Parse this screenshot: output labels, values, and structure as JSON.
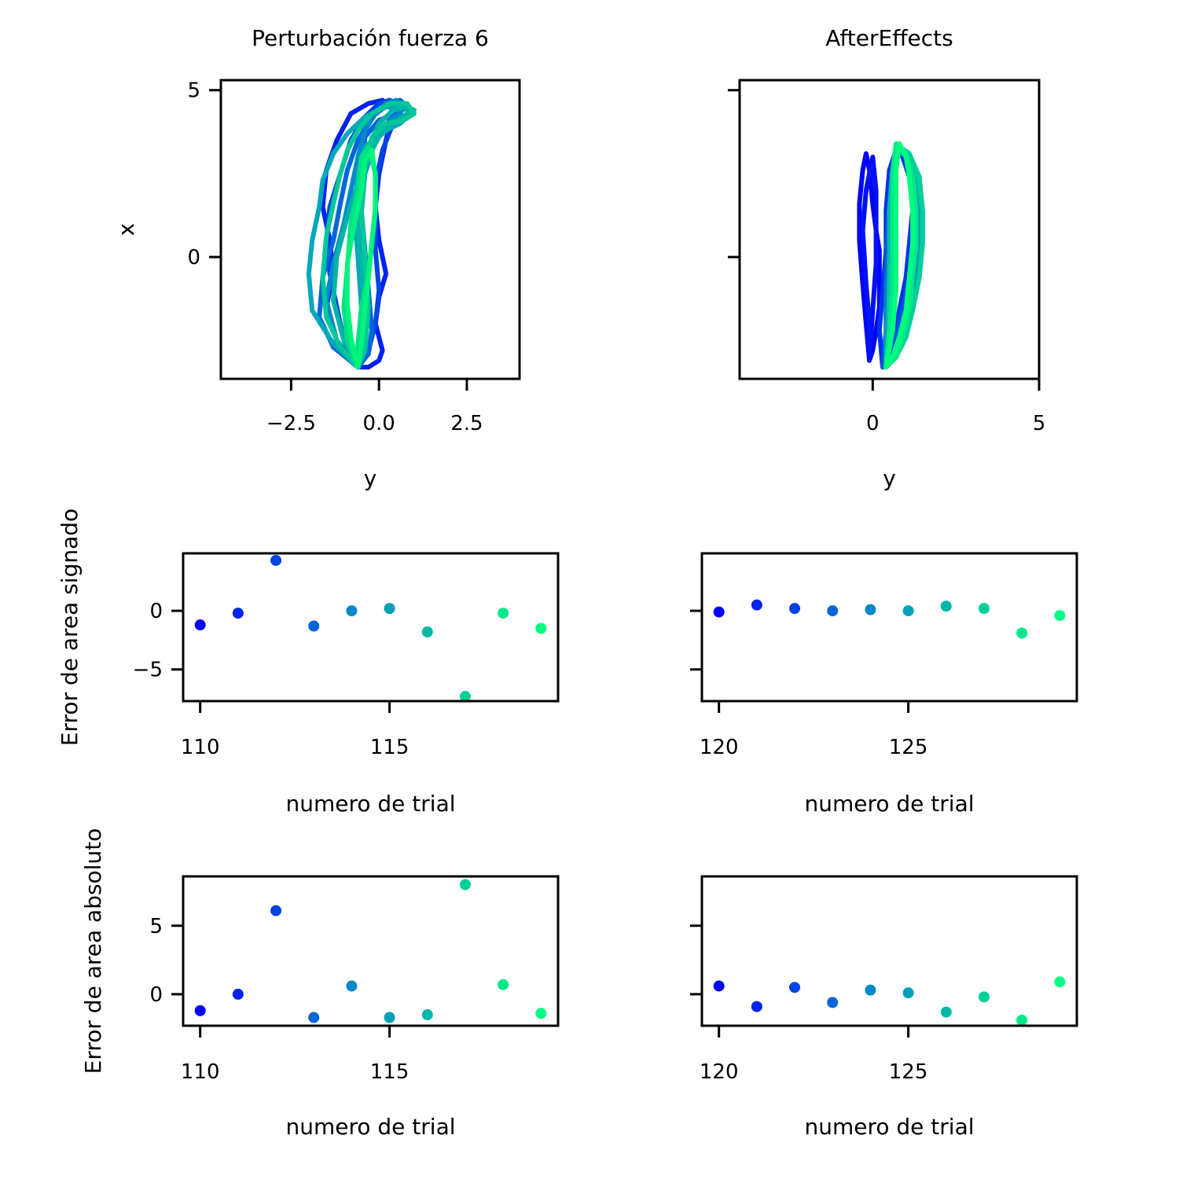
{
  "chart_data": [
    {
      "id": "traj_pert",
      "type": "line",
      "title": "Perturbación fuerza 6",
      "xlabel": "y",
      "ylabel": "x",
      "xlim": [
        -4.5,
        4.0
      ],
      "ylim": [
        -3.65,
        5.3
      ],
      "xticks": [
        -2.5,
        0.0,
        2.5
      ],
      "xticklabels": [
        "−2.5",
        "0.0",
        "2.5"
      ],
      "yticks": [
        0,
        5
      ],
      "yticklabels": [
        "0",
        "5"
      ],
      "series": [
        {
          "color": "#0022ee",
          "x": [
            -0.6,
            -1.2,
            -1.5,
            -1.3,
            -1.4,
            -1.6,
            -1.5,
            -1.2,
            -0.8,
            -0.3,
            0.1,
            0.4,
            0.2,
            0.0,
            -0.1,
            0.0,
            0.2,
            0.0,
            -0.1,
            0.1,
            0.0,
            -0.3,
            -0.6
          ],
          "y": [
            -3.3,
            -2.5,
            -1.5,
            -0.5,
            0.5,
            1.5,
            2.6,
            3.5,
            4.3,
            4.6,
            4.7,
            4.4,
            3.5,
            2.5,
            1.5,
            0.5,
            -0.5,
            -1.2,
            -2.0,
            -2.8,
            -3.1,
            -3.3,
            -3.3
          ]
        },
        {
          "color": "#0044e6",
          "x": [
            -0.6,
            -1.0,
            -1.2,
            -1.4,
            -1.5,
            -1.4,
            -1.1,
            -0.8,
            -0.4,
            0.0,
            0.3,
            0.5,
            0.6,
            0.4,
            0.1,
            -0.1,
            -0.1,
            -0.1,
            0.0,
            -0.1,
            -0.3,
            -0.6
          ],
          "y": [
            -3.3,
            -2.5,
            -1.5,
            -0.5,
            0.5,
            1.5,
            2.5,
            3.5,
            4.2,
            4.6,
            4.7,
            4.6,
            4.3,
            4.0,
            3.2,
            2.2,
            1.2,
            0.2,
            -1.0,
            -2.0,
            -2.8,
            -3.3
          ]
        },
        {
          "color": "#0066da",
          "x": [
            -0.6,
            -1.3,
            -1.7,
            -1.6,
            -1.3,
            -1.1,
            -0.9,
            -0.6,
            -0.2,
            0.3,
            0.6,
            0.8,
            0.5,
            0.0,
            -0.4,
            -0.5,
            -0.5,
            -0.4,
            -0.3,
            -0.2,
            -0.3,
            -0.6
          ],
          "y": [
            -3.3,
            -2.7,
            -1.8,
            -0.6,
            0.5,
            1.6,
            2.6,
            3.5,
            4.2,
            4.6,
            4.7,
            4.5,
            4.3,
            4.1,
            3.6,
            2.6,
            1.4,
            0.2,
            -1.0,
            -2.2,
            -2.9,
            -3.3
          ]
        },
        {
          "color": "#0088cc",
          "x": [
            -0.6,
            -1.2,
            -1.5,
            -1.3,
            -1.0,
            -0.8,
            -0.6,
            -0.4,
            -0.1,
            0.2,
            0.5,
            0.7,
            0.6,
            0.3,
            -0.1,
            -0.4,
            -0.5,
            -0.4,
            -0.3,
            -0.4,
            -0.6
          ],
          "y": [
            -3.3,
            -2.5,
            -1.3,
            -0.2,
            1.0,
            2.0,
            3.0,
            3.8,
            4.3,
            4.6,
            4.7,
            4.5,
            4.3,
            4.1,
            3.5,
            2.5,
            1.3,
            0.0,
            -1.5,
            -2.8,
            -3.3
          ]
        },
        {
          "color": "#00a8b8",
          "x": [
            -0.6,
            -1.3,
            -1.9,
            -2.0,
            -1.9,
            -1.7,
            -1.6,
            -1.3,
            -0.9,
            -0.4,
            0.2,
            0.7,
            0.9,
            0.6,
            0.2,
            -0.4,
            -0.6,
            -0.7,
            -0.6,
            -0.5,
            -0.4,
            -0.6
          ],
          "y": [
            -3.3,
            -2.6,
            -1.6,
            -0.5,
            0.5,
            1.5,
            2.3,
            3.1,
            3.7,
            4.2,
            4.5,
            4.5,
            4.3,
            4.0,
            3.8,
            3.3,
            2.5,
            1.3,
            0.0,
            -1.5,
            -2.8,
            -3.3
          ]
        },
        {
          "color": "#00b4a8",
          "x": [
            -0.6,
            -1.0,
            -1.3,
            -1.2,
            -0.9,
            -0.6,
            -0.3,
            0.0,
            0.4,
            0.8,
            1.0,
            0.8,
            0.4,
            0.0,
            -0.3,
            -0.5,
            -0.6,
            -0.5,
            -0.4,
            -0.5,
            -0.6
          ],
          "y": [
            -3.3,
            -2.5,
            -1.3,
            0.0,
            1.2,
            2.2,
            3.0,
            3.6,
            4.0,
            4.3,
            4.4,
            4.5,
            4.4,
            4.0,
            3.3,
            2.4,
            1.3,
            0.0,
            -1.5,
            -2.8,
            -3.3
          ]
        },
        {
          "color": "#00c898",
          "x": [
            -0.6,
            -1.1,
            -1.5,
            -1.6,
            -1.5,
            -1.3,
            -1.1,
            -0.9,
            -0.6,
            -0.2,
            0.3,
            0.8,
            1.0,
            0.7,
            0.2,
            -0.2,
            -0.4,
            -0.5,
            -0.4,
            -0.3,
            -0.4,
            -0.6
          ],
          "y": [
            -3.3,
            -2.7,
            -1.8,
            -0.6,
            0.6,
            1.6,
            2.5,
            3.2,
            3.8,
            4.3,
            4.6,
            4.6,
            4.3,
            4.1,
            4.0,
            3.6,
            2.6,
            1.4,
            0.0,
            -1.5,
            -2.8,
            -3.3
          ]
        },
        {
          "color": "#00e086",
          "x": [
            -0.6,
            -0.9,
            -1.0,
            -0.9,
            -0.8,
            -0.6,
            -0.5,
            -0.3,
            -0.1,
            -0.1,
            -0.2,
            -0.3,
            -0.5,
            -0.6,
            -0.6
          ],
          "y": [
            -3.3,
            -2.5,
            -1.5,
            -0.3,
            1.0,
            2.0,
            3.0,
            3.3,
            2.5,
            1.5,
            0.5,
            -0.5,
            -1.5,
            -2.6,
            -3.3
          ]
        },
        {
          "color": "#00f47c",
          "x": [
            -0.6,
            -0.8,
            -0.9,
            -0.9,
            -0.7,
            -0.5,
            -0.4,
            -0.2,
            -0.1,
            -0.1,
            -0.2,
            -0.3,
            -0.4,
            -0.5,
            -0.6
          ],
          "y": [
            -3.3,
            -2.4,
            -1.4,
            -0.2,
            1.0,
            2.0,
            2.9,
            3.2,
            2.4,
            1.4,
            0.4,
            -0.6,
            -1.6,
            -2.6,
            -3.3
          ]
        }
      ]
    },
    {
      "id": "traj_after",
      "type": "line",
      "title": "AfterEffects",
      "xlabel": "y",
      "xlim": [
        -4.0,
        5.0
      ],
      "ylim": [
        -3.65,
        5.3
      ],
      "xticks": [
        0,
        5
      ],
      "xticklabels": [
        "0",
        "5"
      ],
      "yticks": [
        0,
        5
      ],
      "yticklabels": [
        "",
        ""
      ],
      "series": [
        {
          "color": "#0000ff",
          "x": [
            -0.1,
            -0.2,
            -0.3,
            -0.4,
            -0.4,
            -0.3,
            -0.2,
            -0.1,
            0.0,
            0.1,
            0.2,
            0.2,
            0.2,
            0.1,
            0.0,
            -0.1
          ],
          "y": [
            -3.1,
            -2.0,
            -0.8,
            0.5,
            1.6,
            2.6,
            3.1,
            2.6,
            1.6,
            0.8,
            0.2,
            -0.6,
            -1.5,
            -2.2,
            -2.8,
            -3.1
          ]
        },
        {
          "color": "#0011f8",
          "x": [
            -0.1,
            -0.1,
            -0.2,
            -0.3,
            -0.2,
            0.0,
            0.1,
            0.1,
            0.1,
            0.0,
            -0.1
          ],
          "y": [
            -3.1,
            -2.0,
            -0.8,
            0.8,
            2.0,
            3.0,
            2.0,
            1.0,
            -0.2,
            -1.6,
            -3.1
          ]
        },
        {
          "color": "#0033ec",
          "x": [
            0.3,
            0.2,
            0.3,
            0.4,
            0.4,
            0.5,
            0.7,
            0.9,
            1.1,
            1.2,
            1.1,
            1.0,
            0.8,
            0.6,
            0.4,
            0.3
          ],
          "y": [
            -3.3,
            -2.2,
            -1.0,
            0.2,
            1.4,
            2.6,
            3.2,
            3.0,
            2.4,
            1.4,
            0.4,
            -0.6,
            -1.6,
            -2.4,
            -3.0,
            -3.3
          ]
        },
        {
          "color": "#0055e0",
          "x": [
            0.3,
            0.4,
            0.4,
            0.4,
            0.5,
            0.6,
            0.8,
            1.0,
            1.2,
            1.3,
            1.2,
            1.1,
            0.9,
            0.7,
            0.5,
            0.3
          ],
          "y": [
            -3.3,
            -2.2,
            -1.0,
            0.2,
            1.4,
            2.6,
            3.2,
            3.0,
            2.4,
            1.4,
            0.4,
            -0.6,
            -1.6,
            -2.4,
            -3.0,
            -3.3
          ]
        },
        {
          "color": "#0077d0",
          "x": [
            0.4,
            0.4,
            0.4,
            0.5,
            0.5,
            0.6,
            0.8,
            1.0,
            1.2,
            1.3,
            1.3,
            1.2,
            1.0,
            0.8,
            0.6,
            0.4
          ],
          "y": [
            -3.3,
            -2.2,
            -1.0,
            0.2,
            1.4,
            2.6,
            3.2,
            3.0,
            2.4,
            1.4,
            0.4,
            -0.6,
            -1.6,
            -2.4,
            -3.0,
            -3.3
          ]
        },
        {
          "color": "#0099c0",
          "x": [
            0.4,
            0.4,
            0.5,
            0.5,
            0.5,
            0.6,
            0.8,
            1.1,
            1.3,
            1.4,
            1.4,
            1.3,
            1.1,
            0.9,
            0.6,
            0.4
          ],
          "y": [
            -3.3,
            -2.2,
            -1.0,
            0.2,
            1.4,
            2.6,
            3.2,
            3.0,
            2.4,
            1.4,
            0.4,
            -0.6,
            -1.6,
            -2.4,
            -3.0,
            -3.3
          ]
        },
        {
          "color": "#00b8ac",
          "x": [
            0.4,
            0.5,
            0.5,
            0.5,
            0.5,
            0.6,
            0.8,
            1.1,
            1.3,
            1.5,
            1.5,
            1.4,
            1.2,
            0.9,
            0.6,
            0.4
          ],
          "y": [
            -3.3,
            -2.2,
            -1.0,
            0.2,
            1.4,
            2.6,
            3.3,
            3.1,
            2.4,
            1.4,
            0.4,
            -0.6,
            -1.6,
            -2.4,
            -3.0,
            -3.3
          ]
        },
        {
          "color": "#00d098",
          "x": [
            0.4,
            0.5,
            0.5,
            0.6,
            0.6,
            0.6,
            0.8,
            1.1,
            1.4,
            1.5,
            1.5,
            1.4,
            1.2,
            1.0,
            0.7,
            0.4
          ],
          "y": [
            -3.3,
            -2.2,
            -1.0,
            0.2,
            1.4,
            2.6,
            3.3,
            3.1,
            2.4,
            1.4,
            0.4,
            -0.6,
            -1.6,
            -2.4,
            -3.0,
            -3.3
          ]
        },
        {
          "color": "#00e888",
          "x": [
            0.4,
            0.5,
            0.6,
            0.6,
            0.6,
            0.6,
            0.7,
            1.0,
            1.2,
            1.3,
            1.3,
            1.2,
            1.1,
            0.9,
            0.7,
            0.4
          ],
          "y": [
            -3.3,
            -2.2,
            -1.0,
            0.2,
            1.4,
            2.6,
            3.4,
            3.1,
            2.4,
            1.4,
            0.4,
            -0.6,
            -1.6,
            -2.4,
            -3.0,
            -3.3
          ]
        },
        {
          "color": "#00ff7f",
          "x": [
            0.4,
            0.6,
            0.7,
            0.7,
            0.7,
            0.7,
            0.8,
            1.0,
            1.1,
            1.2,
            1.2,
            1.1,
            1.0,
            0.8,
            0.6,
            0.4
          ],
          "y": [
            -3.3,
            -2.2,
            -1.0,
            0.2,
            1.4,
            2.6,
            3.4,
            3.0,
            2.4,
            1.4,
            0.4,
            -0.6,
            -1.6,
            -2.4,
            -3.0,
            -3.3
          ]
        }
      ]
    },
    {
      "id": "signed_pert",
      "type": "scatter",
      "xlabel": "numero de trial",
      "ylabel": "Error de area signado",
      "xlim": [
        109.55,
        119.45
      ],
      "ylim": [
        -7.7,
        4.9
      ],
      "xticks": [
        110,
        115
      ],
      "xticklabels": [
        "110",
        "115"
      ],
      "yticks": [
        -5,
        0
      ],
      "yticklabels": [
        "−5",
        "0"
      ],
      "x": [
        110,
        111,
        112,
        113,
        114,
        115,
        116,
        117,
        118,
        119
      ],
      "y": [
        -1.2,
        -0.2,
        4.3,
        -1.3,
        0.0,
        0.2,
        -1.8,
        -7.3,
        -0.2,
        -1.5
      ],
      "colors": [
        "#0000ff",
        "#0022f0",
        "#0044e4",
        "#0066d8",
        "#0088c8",
        "#00a0b8",
        "#00b8a8",
        "#00d098",
        "#00e888",
        "#00ff7f"
      ]
    },
    {
      "id": "signed_after",
      "type": "scatter",
      "xlabel": "numero de trial",
      "xlim": [
        119.55,
        129.45
      ],
      "ylim": [
        -7.7,
        4.9
      ],
      "xticks": [
        120,
        125
      ],
      "xticklabels": [
        "120",
        "125"
      ],
      "yticks": [
        -5,
        0
      ],
      "yticklabels": [
        "",
        ""
      ],
      "x": [
        120,
        121,
        122,
        123,
        124,
        125,
        126,
        127,
        128,
        129
      ],
      "y": [
        -0.1,
        0.5,
        0.2,
        0.0,
        0.1,
        0.0,
        0.4,
        0.2,
        -1.9,
        -0.4
      ],
      "colors": [
        "#0000ff",
        "#0022f0",
        "#0044e4",
        "#0066d8",
        "#0088c8",
        "#00a0b8",
        "#00b8a8",
        "#00d098",
        "#00e888",
        "#00ff7f"
      ]
    },
    {
      "id": "abs_pert",
      "type": "scatter",
      "xlabel": "numero de trial",
      "ylabel": "Error de area absoluto",
      "xlim": [
        109.55,
        119.45
      ],
      "ylim": [
        -2.3,
        8.6
      ],
      "xticks": [
        110,
        115
      ],
      "xticklabels": [
        "110",
        "115"
      ],
      "yticks": [
        0,
        5
      ],
      "yticklabels": [
        "0",
        "5"
      ],
      "x": [
        110,
        111,
        112,
        113,
        114,
        115,
        116,
        117,
        118,
        119
      ],
      "y": [
        -1.2,
        0.0,
        6.1,
        -1.7,
        0.6,
        -1.7,
        -1.5,
        8.0,
        0.7,
        -1.4
      ],
      "colors": [
        "#0000ff",
        "#0022f0",
        "#0044e4",
        "#0066d8",
        "#0088c8",
        "#00a0b8",
        "#00b8a8",
        "#00d098",
        "#00e888",
        "#00ff7f"
      ]
    },
    {
      "id": "abs_after",
      "type": "scatter",
      "xlabel": "numero de trial",
      "xlim": [
        119.55,
        129.45
      ],
      "ylim": [
        -2.3,
        8.6
      ],
      "xticks": [
        120,
        125
      ],
      "xticklabels": [
        "120",
        "125"
      ],
      "yticks": [
        0,
        5
      ],
      "yticklabels": [
        "",
        ""
      ],
      "x": [
        120,
        121,
        122,
        123,
        124,
        125,
        126,
        127,
        128,
        129
      ],
      "y": [
        0.6,
        -0.9,
        0.5,
        -0.6,
        0.3,
        0.1,
        -1.3,
        -0.2,
        -1.9,
        0.9
      ],
      "colors": [
        "#0000ff",
        "#0022f0",
        "#0044e4",
        "#0066d8",
        "#0088c8",
        "#00a0b8",
        "#00b8a8",
        "#00d098",
        "#00e888",
        "#00ff7f"
      ]
    }
  ]
}
